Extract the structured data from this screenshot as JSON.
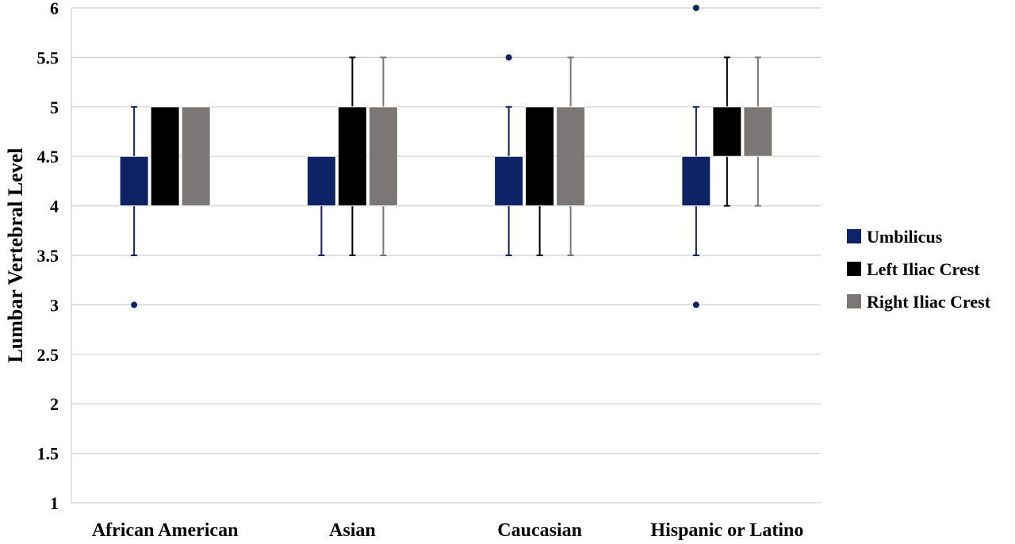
{
  "chart_data": {
    "type": "box",
    "title": "",
    "xlabel": "",
    "ylabel": "Lumbar Vertebral Level",
    "ylim": [
      1,
      6
    ],
    "yticks": [
      "1",
      "1.5",
      "2",
      "2.5",
      "3",
      "3.5",
      "4",
      "4.5",
      "5",
      "5.5",
      "6"
    ],
    "grid": true,
    "legend_position": "right",
    "categories": [
      "African American",
      "Asian",
      "Caucasian",
      "Hispanic or Latino"
    ],
    "series": [
      {
        "name": "Umbilicus",
        "color": "#0d2366",
        "boxes": [
          {
            "q1": 4,
            "median": 4.5,
            "q3": 4.5,
            "whisker_low": 3.5,
            "whisker_high": 5,
            "outliers": [
              3
            ]
          },
          {
            "q1": 4,
            "median": 4.5,
            "q3": 4.5,
            "whisker_low": 3.5,
            "whisker_high": 4.5,
            "outliers": []
          },
          {
            "q1": 4,
            "median": 4.5,
            "q3": 4.5,
            "whisker_low": 3.5,
            "whisker_high": 5,
            "outliers": [
              5.5
            ]
          },
          {
            "q1": 4,
            "median": 4.5,
            "q3": 4.5,
            "whisker_low": 3.5,
            "whisker_high": 5,
            "outliers": [
              3,
              6
            ]
          }
        ]
      },
      {
        "name": "Left Iliac Crest",
        "color": "#000000",
        "boxes": [
          {
            "q1": 4,
            "median": 5,
            "q3": 5,
            "whisker_low": 4,
            "whisker_high": 5,
            "outliers": []
          },
          {
            "q1": 4,
            "median": 5,
            "q3": 5,
            "whisker_low": 3.5,
            "whisker_high": 5.5,
            "outliers": []
          },
          {
            "q1": 4,
            "median": 5,
            "q3": 5,
            "whisker_low": 3.5,
            "whisker_high": 5,
            "outliers": []
          },
          {
            "q1": 4.5,
            "median": 5,
            "q3": 5,
            "whisker_low": 4,
            "whisker_high": 5.5,
            "outliers": []
          }
        ]
      },
      {
        "name": "Right Iliac Crest",
        "color": "#7a7776",
        "boxes": [
          {
            "q1": 4,
            "median": 5,
            "q3": 5,
            "whisker_low": 4,
            "whisker_high": 5,
            "outliers": []
          },
          {
            "q1": 4,
            "median": 5,
            "q3": 5,
            "whisker_low": 3.5,
            "whisker_high": 5.5,
            "outliers": []
          },
          {
            "q1": 4,
            "median": 5,
            "q3": 5,
            "whisker_low": 3.5,
            "whisker_high": 5.5,
            "outliers": []
          },
          {
            "q1": 4.5,
            "median": 5,
            "q3": 5,
            "whisker_low": 4,
            "whisker_high": 5.5,
            "outliers": []
          }
        ]
      }
    ]
  }
}
